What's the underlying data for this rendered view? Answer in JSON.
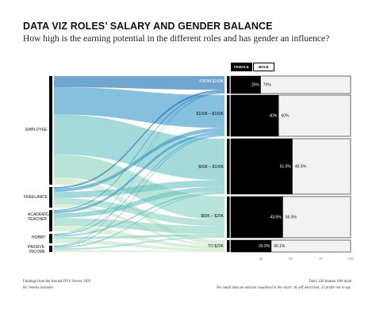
{
  "header": {
    "title": "DATA VIZ ROLES’ SALARY AND GENDER BALANCE",
    "subtitle": "How high is the earning potential in the different roles and has gender an influence?"
  },
  "legend": {
    "female_label": "FEMALE",
    "male_label": "MALE"
  },
  "footer": {
    "source": "Findings from the Annual DVS Survey 2021",
    "author": "By Verena Schrader",
    "total": "Total: 430 female, 848 male",
    "note": "Too small data set and not visualized in the chart: 16 self described, 22 prefer not to say."
  },
  "colors": {
    "female": "#000000",
    "male": "#f2f2f2",
    "role_bar": "#000000",
    "salary_bands": [
      "#1a6fb5",
      "#3a9ac8",
      "#6cc3c4",
      "#8ed3c0",
      "#c3e6c4"
    ]
  },
  "chart_data": [
    {
      "type": "sankey",
      "sources": [
        "EMPLOYEE",
        "FREELANCE",
        "ACADEMIC/ TEACHER",
        "HOBBY",
        "PASSIVE INCOME"
      ],
      "targets": [
        "FROM $160K",
        "$100K – $160K",
        "$60K – $100K",
        "$60K – $20K",
        "TO $20K"
      ]
    },
    {
      "type": "bar",
      "stacked": true,
      "categories": [
        "FROM $160K",
        "$100K – $160K",
        "$60K – $100K",
        "$60K – $20K",
        "TO $20K"
      ],
      "series": [
        {
          "name": "FEMALE",
          "values": [
            25,
            40,
            51.5,
            43.5,
            33.9
          ]
        },
        {
          "name": "MALE",
          "values": [
            75,
            60,
            48.5,
            56.5,
            66.1
          ]
        }
      ],
      "data_labels": {
        "female": [
          "25%",
          "40%",
          "51.5%",
          "43.5%",
          "33.9%"
        ],
        "male": [
          "75%",
          "60%",
          "48.5%",
          "56.5%",
          "66.1%"
        ]
      },
      "xticks": [
        "25",
        "50",
        "75",
        "100"
      ],
      "xlim": [
        0,
        100
      ]
    }
  ]
}
